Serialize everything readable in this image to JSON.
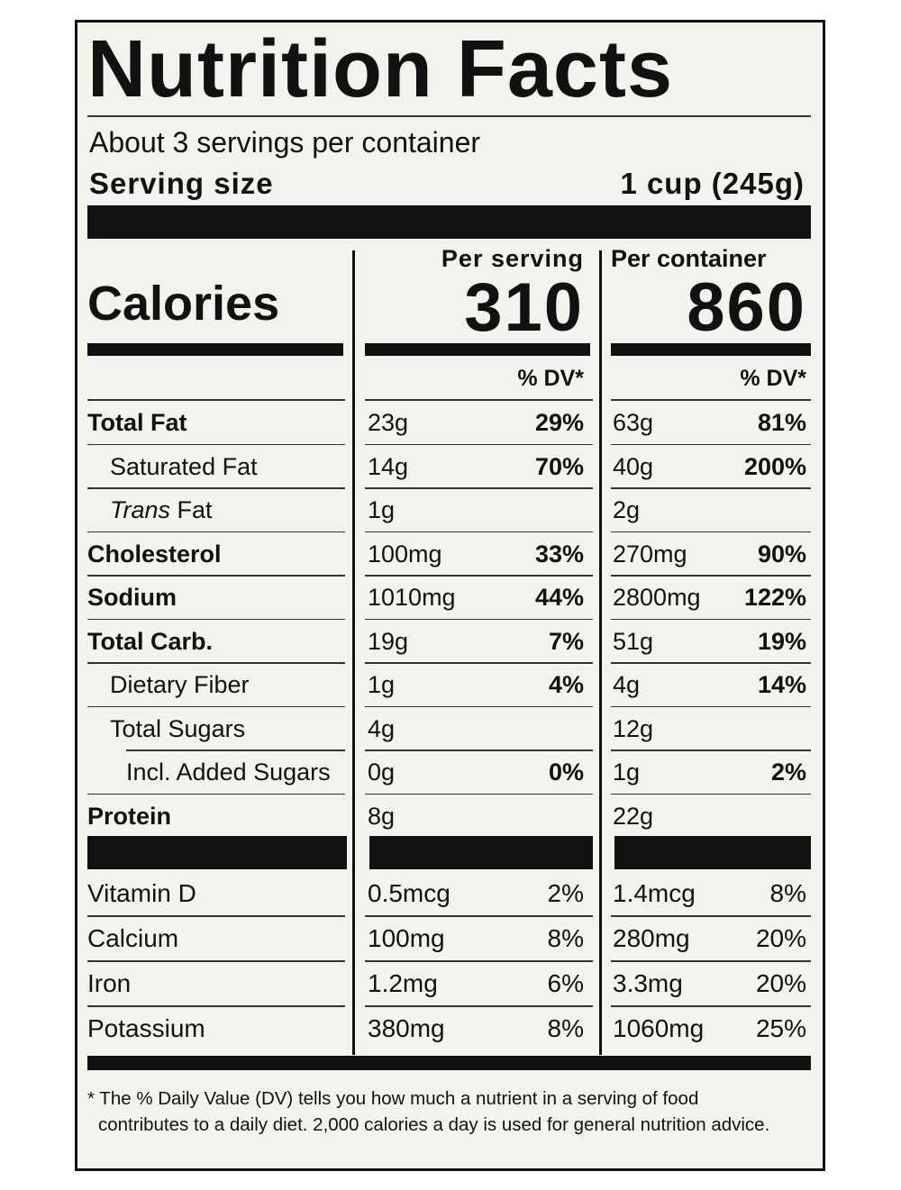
{
  "title": "Nutrition Facts",
  "servings": "About 3 servings per container",
  "serving_size": {
    "label": "Serving size",
    "value": "1 cup (245g)"
  },
  "calories": {
    "label": "Calories",
    "per_serving": {
      "header": "Per serving",
      "value": "310"
    },
    "per_container": {
      "header": "Per container",
      "value": "860"
    }
  },
  "dv_header": "% DV*",
  "nutrients": [
    {
      "name": "Total Fat",
      "bold": true,
      "indent": 0,
      "per_serving": {
        "amount": "23g",
        "dv": "29%"
      },
      "per_container": {
        "amount": "63g",
        "dv": "81%"
      }
    },
    {
      "name": "Saturated Fat",
      "bold": false,
      "indent": 1,
      "per_serving": {
        "amount": "14g",
        "dv": "70%"
      },
      "per_container": {
        "amount": "40g",
        "dv": "200%"
      }
    },
    {
      "name_italic": "Trans",
      "name": "Fat",
      "bold": false,
      "indent": 1,
      "per_serving": {
        "amount": "1g",
        "dv": null
      },
      "per_container": {
        "amount": "2g",
        "dv": null
      }
    },
    {
      "name": "Cholesterol",
      "bold": true,
      "indent": 0,
      "per_serving": {
        "amount": "100mg",
        "dv": "33%"
      },
      "per_container": {
        "amount": "270mg",
        "dv": "90%"
      }
    },
    {
      "name": "Sodium",
      "bold": true,
      "indent": 0,
      "per_serving": {
        "amount": "1010mg",
        "dv": "44%"
      },
      "per_container": {
        "amount": "2800mg",
        "dv": "122%"
      }
    },
    {
      "name": "Total Carb.",
      "bold": true,
      "indent": 0,
      "per_serving": {
        "amount": "19g",
        "dv": "7%"
      },
      "per_container": {
        "amount": "51g",
        "dv": "19%"
      }
    },
    {
      "name": "Dietary Fiber",
      "bold": false,
      "indent": 1,
      "per_serving": {
        "amount": "1g",
        "dv": "4%"
      },
      "per_container": {
        "amount": "4g",
        "dv": "14%"
      }
    },
    {
      "name": "Total Sugars",
      "bold": false,
      "indent": 1,
      "per_serving": {
        "amount": "4g",
        "dv": null
      },
      "per_container": {
        "amount": "12g",
        "dv": null
      }
    },
    {
      "name": "Incl. Added Sugars",
      "bold": false,
      "indent": 2,
      "per_serving": {
        "amount": "0g",
        "dv": "0%"
      },
      "per_container": {
        "amount": "1g",
        "dv": "2%"
      }
    },
    {
      "name": "Protein",
      "bold": true,
      "indent": 0,
      "per_serving": {
        "amount": "8g",
        "dv": null
      },
      "per_container": {
        "amount": "22g",
        "dv": null
      }
    }
  ],
  "vitamins": [
    {
      "name": "Vitamin D",
      "per_serving": {
        "amount": "0.5mcg",
        "dv": "2%"
      },
      "per_container": {
        "amount": "1.4mcg",
        "dv": "8%"
      }
    },
    {
      "name": "Calcium",
      "per_serving": {
        "amount": "100mg",
        "dv": "8%"
      },
      "per_container": {
        "amount": "280mg",
        "dv": "20%"
      }
    },
    {
      "name": "Iron",
      "per_serving": {
        "amount": "1.2mg",
        "dv": "6%"
      },
      "per_container": {
        "amount": "3.3mg",
        "dv": "20%"
      }
    },
    {
      "name": "Potassium",
      "per_serving": {
        "amount": "380mg",
        "dv": "8%"
      },
      "per_container": {
        "amount": "1060mg",
        "dv": "25%"
      }
    }
  ],
  "footnote": "* The % Daily Value (DV) tells you how much a nutrient in a serving of food contributes to a daily diet. 2,000 calories a day is used for general nutrition advice."
}
